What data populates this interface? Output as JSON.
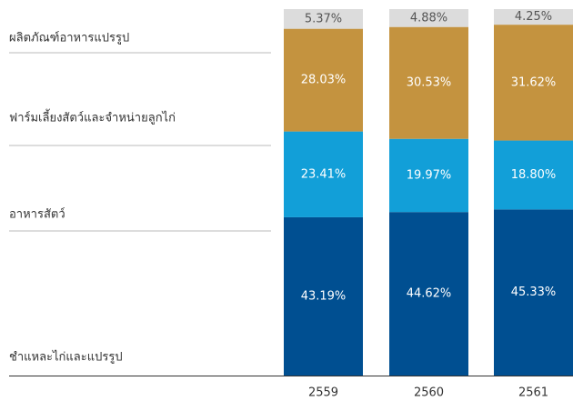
{
  "chart_data": {
    "type": "stacked_bar",
    "categories": [
      "2559",
      "2560",
      "2561"
    ],
    "series": [
      {
        "name": "ชำแหละไก่และแปรรูป",
        "color": "#004f91",
        "values": [
          43.19,
          44.62,
          45.33
        ],
        "value_labels": [
          "43.19%",
          "44.62%",
          "45.33%"
        ]
      },
      {
        "name": "อาหารสัตว์",
        "color": "#129fd8",
        "values": [
          23.41,
          19.97,
          18.8
        ],
        "value_labels": [
          "23.41%",
          "19.97%",
          "18.80%"
        ]
      },
      {
        "name": "ฟาร์มเลี้ยงสัตว์และจำหน่ายลูกไก่",
        "color": "#c4933f",
        "values": [
          28.03,
          30.53,
          31.62
        ],
        "value_labels": [
          "28.03%",
          "30.53%",
          "31.62%"
        ]
      },
      {
        "name": "ผลิตภัณฑ์อาหารแปรรูป",
        "color": "#dcdcdc",
        "values": [
          5.37,
          4.88,
          4.25
        ],
        "value_labels": [
          "5.37%",
          "4.88%",
          "4.25%"
        ]
      }
    ]
  }
}
